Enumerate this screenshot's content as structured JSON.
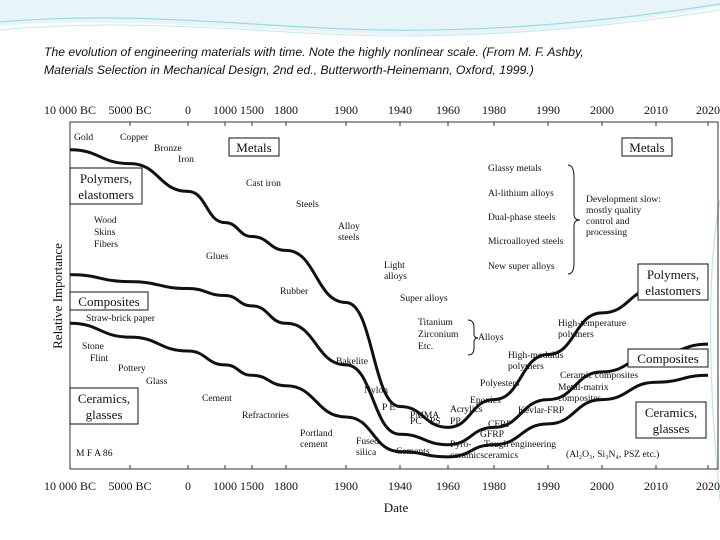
{
  "caption": {
    "line1": "The evolution of engineering materials with time. Note the highly nonlinear scale. (From M. F. Ashby,",
    "line2": "Materials Selection in Mechanical Design, 2nd ed., Butterworth-Heinemann, Oxford, 1999.)"
  },
  "theme": {
    "accent": "#5fc3d8",
    "curve": "#111111"
  },
  "chart_data": {
    "type": "area",
    "xlabel": "Date",
    "ylabel": "Relative Importance",
    "xticks": [
      "10 000 BC",
      "5000 BC",
      "0",
      "1000",
      "1500",
      "1800",
      "1900",
      "1940",
      "1960",
      "1980",
      "1990",
      "2000",
      "2010",
      "2020"
    ],
    "region_labels": {
      "metals_left": "Metals",
      "metals_right": "Metals",
      "polymers_left": "Polymers,\nelastomers",
      "polymers_right": "Polymers,\nelastomers",
      "composites_left": "Composites",
      "composites_right": "Composites",
      "ceramics_left": "Ceramics,\nglasses",
      "ceramics_right": "Ceramics,\nglasses"
    },
    "curves": [
      {
        "name": "metals",
        "x": [
          "10 000 BC",
          "5000 BC",
          "0",
          "1000",
          "1500",
          "1800",
          "1900",
          "1940",
          "1960",
          "1980",
          "1990",
          "2000",
          "2010",
          "2020"
        ],
        "y": [
          0.92,
          0.88,
          0.8,
          0.71,
          0.67,
          0.63,
          0.48,
          0.18,
          0.12,
          0.2,
          0.33,
          0.45,
          0.52,
          0.54
        ]
      },
      {
        "name": "polymers",
        "x": [
          "10 000 BC",
          "5000 BC",
          "0",
          "1000",
          "1500",
          "1800",
          "1900",
          "1940",
          "1960",
          "1980",
          "1990",
          "2000",
          "2010",
          "2020"
        ],
        "y": [
          0.56,
          0.54,
          0.52,
          0.5,
          0.47,
          0.42,
          0.3,
          0.1,
          0.07,
          0.12,
          0.2,
          0.28,
          0.33,
          0.36
        ]
      },
      {
        "name": "composites",
        "x": [
          "10 000 BC",
          "5000 BC",
          "0",
          "1000",
          "1500",
          "1800",
          "1900",
          "1940",
          "1960",
          "1980",
          "1990",
          "2000",
          "2010",
          "2020"
        ],
        "y": [
          0.42,
          0.38,
          0.34,
          0.3,
          0.27,
          0.24,
          0.15,
          0.05,
          0.035,
          0.07,
          0.13,
          0.2,
          0.25,
          0.27
        ]
      }
    ],
    "annotations": [
      "Gold",
      "Copper",
      "Bronze",
      "Iron",
      "Cast iron",
      "Steels",
      "Alloy\nsteels",
      "Light\nalloys",
      "Super alloys",
      "Titanium",
      "Zirconium",
      "Etc.",
      "Alloys",
      "Glassy metals",
      "Al-lithium alloys",
      "Dual-phase steels",
      "Microalloyed steels",
      "New super alloys",
      "Development slow:\nmostly quality\ncontrol and\nprocessing",
      "Wood",
      "Skins",
      "Fibers",
      "Glues",
      "Rubber",
      "Bakelite",
      "Nylon",
      "P E",
      "PMMA",
      "Acrylics",
      "PC",
      "PS",
      "PP",
      "Epoxies",
      "Polyesters",
      "High-temperature\npolymers",
      "High-modulus\npolymers",
      "Straw-brick paper",
      "Stone",
      "Flint",
      "Pottery",
      "Glass",
      "Cement",
      "Refractories",
      "Portland\ncement",
      "Fused\nsilica",
      "Cements",
      "Pyro-\nceramics",
      "Tough engineering\nceramics",
      "(Al₂O₃, Si₃N₄, PSZ etc.)",
      "Ceramic composites",
      "Metal-matrix\ncomposites",
      "Kevlar-FRP",
      "CFRP",
      "GFRP",
      "M F A 86"
    ]
  }
}
